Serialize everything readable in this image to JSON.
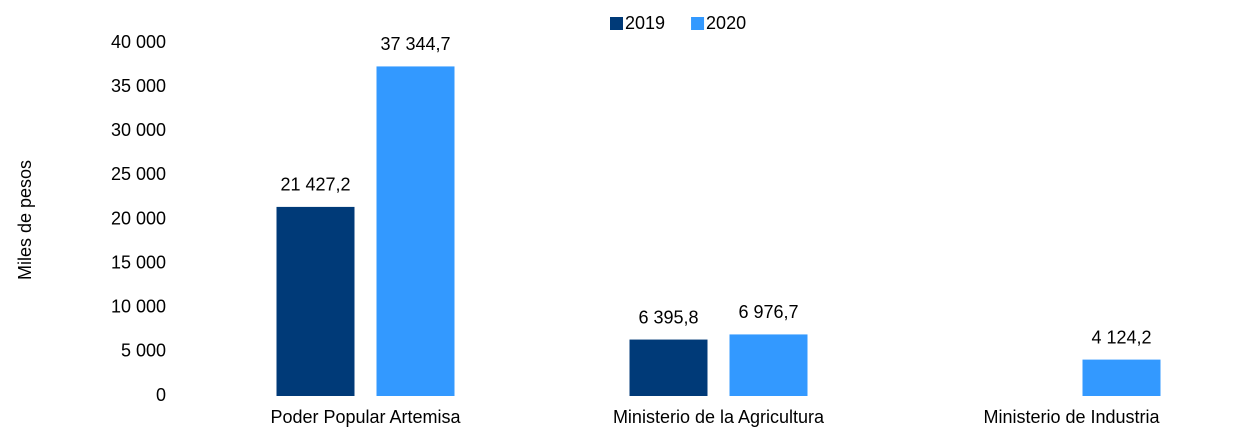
{
  "chart_data": {
    "type": "bar",
    "y_label": "Miles de pesos",
    "categories": [
      "Poder Popular Artemisa",
      "Ministerio de la Agricultura",
      "Ministerio de Industria"
    ],
    "series": [
      {
        "name": "2019",
        "color": "#003a78",
        "values": [
          21427.2,
          6395.8,
          null
        ],
        "value_labels": [
          "21 427,2",
          "6 395,8",
          null
        ]
      },
      {
        "name": "2020",
        "color": "#3399ff",
        "values": [
          37344.7,
          6976.7,
          4124.2
        ],
        "value_labels": [
          "37 344,7",
          "6 976,7",
          "4 124,2"
        ]
      }
    ],
    "ylim": [
      0,
      40000
    ],
    "yticks": [
      0,
      {
        "value": 5000,
        "label": "5 000"
      },
      {
        "value": 10000,
        "label": "10 000"
      },
      {
        "value": 15000,
        "label": "15 000"
      },
      {
        "value": 20000,
        "label": "20 000"
      },
      {
        "value": 25000,
        "label": "25 000"
      },
      {
        "value": 30000,
        "label": "30 000"
      },
      {
        "value": 35000,
        "label": "35 000"
      },
      {
        "value": 40000,
        "label": "40 000"
      }
    ],
    "legend": "top",
    "grid": false
  }
}
